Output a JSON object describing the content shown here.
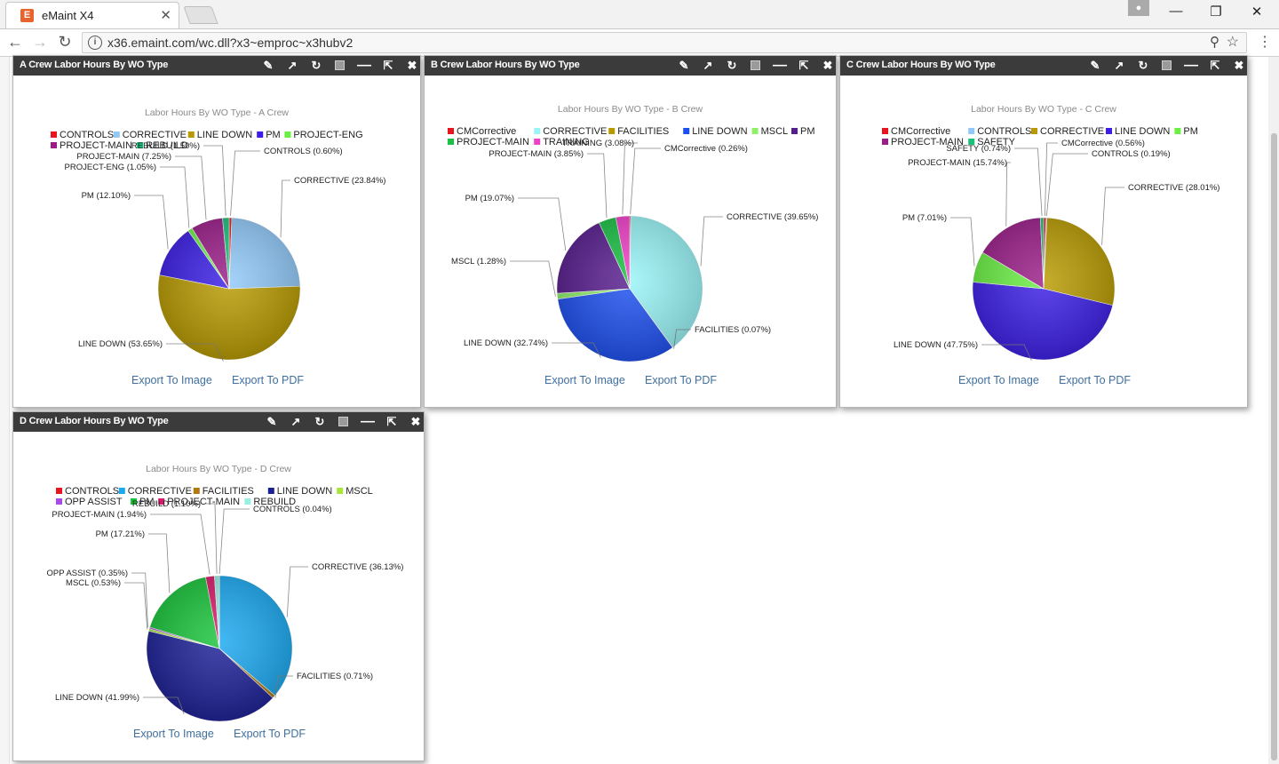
{
  "browser": {
    "tab_title": "eMaint X4",
    "tab_favicon": "E",
    "url": "x36.emaint.com/wc.dll?x3~emproc~x3hubv2"
  },
  "icons": {
    "edit": "pencil-icon",
    "popout": "external-link-icon",
    "refresh": "refresh-icon",
    "color": "color-square-icon",
    "minimize": "minus-icon",
    "maximize": "expand-icon",
    "close": "close-icon"
  },
  "widgets": [
    {
      "title": "A Crew Labor Hours By WO Type",
      "export_image": "Export To Image",
      "export_pdf": "Export To PDF",
      "chart_data": {
        "type": "pie",
        "title": "Labor Hours By WO Type - A Crew",
        "legend": [
          {
            "label": "CONTROLS",
            "color": "#e8141e"
          },
          {
            "label": "CORRECTIVE",
            "color": "#90c8f8"
          },
          {
            "label": "LINE DOWN",
            "color": "#b89a00"
          },
          {
            "label": "PM",
            "color": "#3a1de6"
          },
          {
            "label": "PROJECT-ENG",
            "color": "#6af043"
          },
          {
            "label": "PROJECT-MAIN",
            "color": "#9a1c87"
          },
          {
            "label": "REBUILD",
            "color": "#18c079"
          }
        ],
        "slices": [
          {
            "name": "CONTROLS",
            "value": 0.6,
            "color": "#e8141e",
            "label": "CONTROLS (0.60%)"
          },
          {
            "name": "CORRECTIVE",
            "value": 23.84,
            "color": "#90c8f8",
            "label": "CORRECTIVE (23.84%)"
          },
          {
            "name": "LINE DOWN",
            "value": 53.65,
            "color": "#b89a00",
            "label": "LINE DOWN (53.65%)"
          },
          {
            "name": "PM",
            "value": 12.1,
            "color": "#3a1de6",
            "label": "PM (12.10%)"
          },
          {
            "name": "PROJECT-ENG",
            "value": 1.05,
            "color": "#6af043",
            "label": "PROJECT-ENG (1.05%)"
          },
          {
            "name": "PROJECT-MAIN",
            "value": 7.25,
            "color": "#9a1c87",
            "label": "PROJECT-MAIN (7.25%)"
          },
          {
            "name": "REBUILD",
            "value": 1.5,
            "color": "#18c079",
            "label": "REBUILD (1.50%)"
          }
        ]
      }
    },
    {
      "title": "B Crew Labor Hours By WO Type",
      "export_image": "Export To Image",
      "export_pdf": "Export To PDF",
      "chart_data": {
        "type": "pie",
        "title": "Labor Hours By WO Type - B Crew",
        "legend": [
          {
            "label": "CMCorrective",
            "color": "#e8141e"
          },
          {
            "label": "CORRECTIVE",
            "color": "#98f4f7"
          },
          {
            "label": "FACILITIES",
            "color": "#b89a00"
          },
          {
            "label": "LINE DOWN",
            "color": "#1c4ff0"
          },
          {
            "label": "MSCL",
            "color": "#8ff06a"
          },
          {
            "label": "PM",
            "color": "#571c8e"
          },
          {
            "label": "PROJECT-MAIN",
            "color": "#18c043"
          },
          {
            "label": "TRAINING",
            "color": "#f03fc8"
          }
        ],
        "slices": [
          {
            "name": "CMCorrective",
            "value": 0.26,
            "color": "#e8141e",
            "label": "CMCorrective (0.26%)"
          },
          {
            "name": "CORRECTIVE",
            "value": 39.65,
            "color": "#98f4f7",
            "label": "CORRECTIVE (39.65%)"
          },
          {
            "name": "FACILITIES",
            "value": 0.07,
            "color": "#b89a00",
            "label": "FACILITIES (0.07%)"
          },
          {
            "name": "LINE DOWN",
            "value": 32.74,
            "color": "#1c4ff0",
            "label": "LINE DOWN (32.74%)"
          },
          {
            "name": "MSCL",
            "value": 1.28,
            "color": "#8ff06a",
            "label": "MSCL (1.28%)"
          },
          {
            "name": "PM",
            "value": 19.07,
            "color": "#571c8e",
            "label": "PM (19.07%)"
          },
          {
            "name": "PROJECT-MAIN",
            "value": 3.85,
            "color": "#18c043",
            "label": "PROJECT-MAIN (3.85%)"
          },
          {
            "name": "TRAINING",
            "value": 3.08,
            "color": "#f03fc8",
            "label": "TRAINING (3.08%)"
          }
        ]
      }
    },
    {
      "title": "C Crew Labor Hours By WO Type",
      "export_image": "Export To Image",
      "export_pdf": "Export To PDF",
      "chart_data": {
        "type": "pie",
        "title": "Labor Hours By WO Type - C Crew",
        "legend": [
          {
            "label": "CMCorrective",
            "color": "#e8141e"
          },
          {
            "label": "CONTROLS",
            "color": "#90c8f8"
          },
          {
            "label": "CORRECTIVE",
            "color": "#b89a00"
          },
          {
            "label": "LINE DOWN",
            "color": "#3a1de6"
          },
          {
            "label": "PM",
            "color": "#6af043"
          },
          {
            "label": "PROJECT-MAIN",
            "color": "#9a1c87"
          },
          {
            "label": "SAFETY",
            "color": "#18c079"
          }
        ],
        "slices": [
          {
            "name": "CMCorrective",
            "value": 0.56,
            "color": "#e8141e",
            "label": "CMCorrective (0.56%)"
          },
          {
            "name": "CONTROLS",
            "value": 0.19,
            "color": "#90c8f8",
            "label": "CONTROLS (0.19%)"
          },
          {
            "name": "CORRECTIVE",
            "value": 28.01,
            "color": "#b89a00",
            "label": "CORRECTIVE (28.01%)"
          },
          {
            "name": "LINE DOWN",
            "value": 47.75,
            "color": "#3a1de6",
            "label": "LINE DOWN (47.75%)"
          },
          {
            "name": "PM",
            "value": 7.01,
            "color": "#6af043",
            "label": "PM (7.01%)"
          },
          {
            "name": "PROJECT-MAIN",
            "value": 15.74,
            "color": "#9a1c87",
            "label": "PROJECT-MAIN (15.74%)"
          },
          {
            "name": "SAFETY",
            "value": 0.74,
            "color": "#18c079",
            "label": "SAFETY (0.74%)"
          }
        ]
      }
    },
    {
      "title": "D Crew Labor Hours By WO Type",
      "export_image": "Export To Image",
      "export_pdf": "Export To PDF",
      "chart_data": {
        "type": "pie",
        "title": "Labor Hours By WO Type - D Crew",
        "legend": [
          {
            "label": "CONTROLS",
            "color": "#e8141e"
          },
          {
            "label": "CORRECTIVE",
            "color": "#1aa8f0"
          },
          {
            "label": "FACILITIES",
            "color": "#b07a10"
          },
          {
            "label": "LINE DOWN",
            "color": "#1c1f96"
          },
          {
            "label": "MSCL",
            "color": "#a8e63a"
          },
          {
            "label": "OPP ASSIST",
            "color": "#a84ae8"
          },
          {
            "label": "PM",
            "color": "#18c43a"
          },
          {
            "label": "PROJECT-MAIN",
            "color": "#d81a6a"
          },
          {
            "label": "REBUILD",
            "color": "#98f0e0"
          }
        ],
        "slices": [
          {
            "name": "CONTROLS",
            "value": 0.04,
            "color": "#e8141e",
            "label": "CONTROLS (0.04%)"
          },
          {
            "name": "CORRECTIVE",
            "value": 36.13,
            "color": "#1aa8f0",
            "label": "CORRECTIVE (36.13%)"
          },
          {
            "name": "FACILITIES",
            "value": 0.71,
            "color": "#b07a10",
            "label": "FACILITIES (0.71%)"
          },
          {
            "name": "LINE DOWN",
            "value": 41.99,
            "color": "#1c1f96",
            "label": "LINE DOWN (41.99%)"
          },
          {
            "name": "MSCL",
            "value": 0.53,
            "color": "#a8e63a",
            "label": "MSCL (0.53%)"
          },
          {
            "name": "OPP ASSIST",
            "value": 0.35,
            "color": "#a84ae8",
            "label": "OPP ASSIST (0.35%)"
          },
          {
            "name": "PM",
            "value": 17.21,
            "color": "#18c43a",
            "label": "PM (17.21%)"
          },
          {
            "name": "PROJECT-MAIN",
            "value": 1.94,
            "color": "#d81a6a",
            "label": "PROJECT-MAIN (1.94%)"
          },
          {
            "name": "REBUILD",
            "value": 1.1,
            "color": "#98f0e0",
            "label": "REBUILD (1.10%)"
          }
        ]
      }
    }
  ]
}
